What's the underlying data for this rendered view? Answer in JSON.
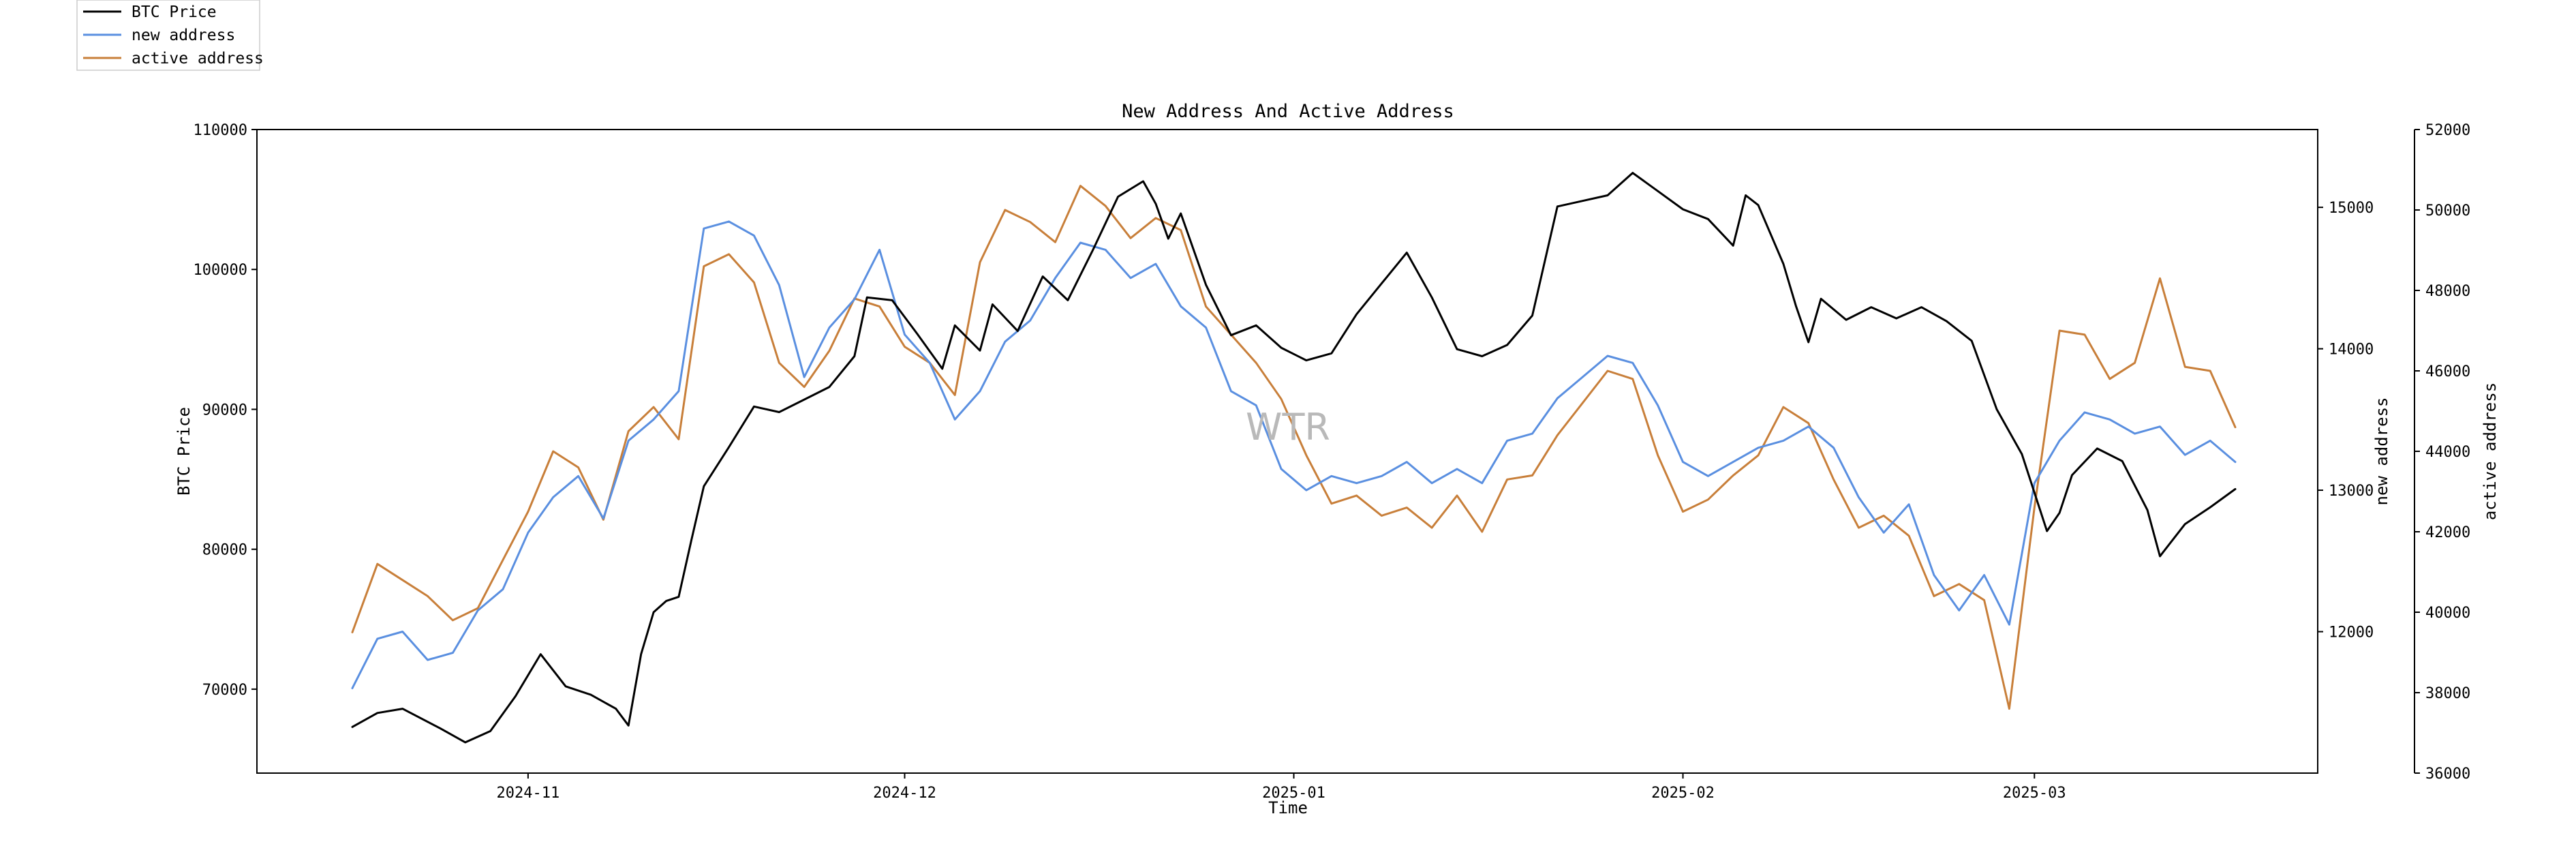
{
  "chart_data": {
    "type": "line",
    "title": "New Address And Active Address",
    "xlabel": "Time",
    "watermark": "WTR",
    "legend_placement": "top-left, outside plot",
    "x_range": [
      "2024-10-18",
      "2025-03-17"
    ],
    "x_ticks": [
      {
        "date": "2024-11-01",
        "label": "2024-11"
      },
      {
        "date": "2024-12-01",
        "label": "2024-12"
      },
      {
        "date": "2025-01-01",
        "label": "2025-01"
      },
      {
        "date": "2025-02-01",
        "label": "2025-02"
      },
      {
        "date": "2025-03-01",
        "label": "2025-03"
      }
    ],
    "axes": {
      "left": {
        "label": "BTC Price",
        "range": [
          64000,
          110000
        ],
        "ticks": [
          70000,
          80000,
          90000,
          100000,
          110000
        ]
      },
      "right1": {
        "label": "new address",
        "range": [
          11000,
          15550
        ],
        "ticks": [
          12000,
          13000,
          14000,
          15000
        ]
      },
      "right2": {
        "label": "active address",
        "range": [
          36000,
          52000
        ],
        "ticks": [
          36000,
          38000,
          40000,
          42000,
          44000,
          46000,
          48000,
          50000,
          52000
        ]
      }
    },
    "series": [
      {
        "name": "BTC Price",
        "axis": "left",
        "color": "#000000",
        "points": [
          [
            "2024-10-18",
            67300
          ],
          [
            "2024-10-20",
            68300
          ],
          [
            "2024-10-22",
            68600
          ],
          [
            "2024-10-25",
            67200
          ],
          [
            "2024-10-27",
            66200
          ],
          [
            "2024-10-29",
            67000
          ],
          [
            "2024-10-31",
            69500
          ],
          [
            "2024-11-02",
            72500
          ],
          [
            "2024-11-04",
            70200
          ],
          [
            "2024-11-06",
            69600
          ],
          [
            "2024-11-08",
            68600
          ],
          [
            "2024-11-09",
            67400
          ],
          [
            "2024-11-10",
            72500
          ],
          [
            "2024-11-11",
            75500
          ],
          [
            "2024-11-12",
            76300
          ],
          [
            "2024-11-13",
            76600
          ],
          [
            "2024-11-14",
            80600
          ],
          [
            "2024-11-15",
            84500
          ],
          [
            "2024-11-17",
            87300
          ],
          [
            "2024-11-19",
            90200
          ],
          [
            "2024-11-21",
            89800
          ],
          [
            "2024-11-23",
            90700
          ],
          [
            "2024-11-25",
            91600
          ],
          [
            "2024-11-27",
            93800
          ],
          [
            "2024-11-28",
            98000
          ],
          [
            "2024-11-30",
            97800
          ],
          [
            "2024-12-02",
            95400
          ],
          [
            "2024-12-04",
            92900
          ],
          [
            "2024-12-05",
            96000
          ],
          [
            "2024-12-07",
            94200
          ],
          [
            "2024-12-08",
            97500
          ],
          [
            "2024-12-10",
            95600
          ],
          [
            "2024-12-12",
            99500
          ],
          [
            "2024-12-14",
            97800
          ],
          [
            "2024-12-16",
            101400
          ],
          [
            "2024-12-18",
            105200
          ],
          [
            "2024-12-20",
            106300
          ],
          [
            "2024-12-21",
            104700
          ],
          [
            "2024-12-22",
            102200
          ],
          [
            "2024-12-23",
            104000
          ],
          [
            "2024-12-25",
            98900
          ],
          [
            "2024-12-27",
            95300
          ],
          [
            "2024-12-29",
            96000
          ],
          [
            "2024-12-31",
            94400
          ],
          [
            "2025-01-02",
            93500
          ],
          [
            "2025-01-04",
            94000
          ],
          [
            "2025-01-06",
            96800
          ],
          [
            "2025-01-08",
            99000
          ],
          [
            "2025-01-10",
            101200
          ],
          [
            "2025-01-12",
            98000
          ],
          [
            "2025-01-14",
            94300
          ],
          [
            "2025-01-16",
            93800
          ],
          [
            "2025-01-18",
            94600
          ],
          [
            "2025-01-20",
            96700
          ],
          [
            "2025-01-22",
            104500
          ],
          [
            "2025-01-24",
            104900
          ],
          [
            "2025-01-26",
            105300
          ],
          [
            "2025-01-28",
            106900
          ],
          [
            "2025-01-30",
            105600
          ],
          [
            "2025-02-01",
            104300
          ],
          [
            "2025-02-03",
            103600
          ],
          [
            "2025-02-05",
            101700
          ],
          [
            "2025-02-06",
            105300
          ],
          [
            "2025-02-07",
            104600
          ],
          [
            "2025-02-09",
            100400
          ],
          [
            "2025-02-10",
            97400
          ],
          [
            "2025-02-11",
            94800
          ],
          [
            "2025-02-12",
            97900
          ],
          [
            "2025-02-14",
            96400
          ],
          [
            "2025-02-16",
            97300
          ],
          [
            "2025-02-18",
            96500
          ],
          [
            "2025-02-20",
            97300
          ],
          [
            "2025-02-22",
            96300
          ],
          [
            "2025-02-24",
            94900
          ],
          [
            "2025-02-26",
            90000
          ],
          [
            "2025-02-28",
            86800
          ],
          [
            "2025-03-02",
            81300
          ],
          [
            "2025-03-03",
            82600
          ],
          [
            "2025-03-04",
            85300
          ],
          [
            "2025-03-06",
            87200
          ],
          [
            "2025-03-08",
            86300
          ],
          [
            "2025-03-10",
            82800
          ],
          [
            "2025-03-11",
            79500
          ],
          [
            "2025-03-13",
            81800
          ],
          [
            "2025-03-15",
            83000
          ],
          [
            "2025-03-17",
            84300
          ]
        ]
      },
      {
        "name": "new address",
        "axis": "right1",
        "color": "#5a8fe0",
        "points": [
          [
            "2024-10-18",
            11600
          ],
          [
            "2024-10-20",
            11950
          ],
          [
            "2024-10-22",
            12000
          ],
          [
            "2024-10-24",
            11800
          ],
          [
            "2024-10-26",
            11850
          ],
          [
            "2024-10-28",
            12150
          ],
          [
            "2024-10-30",
            12300
          ],
          [
            "2024-11-01",
            12700
          ],
          [
            "2024-11-03",
            12950
          ],
          [
            "2024-11-05",
            13100
          ],
          [
            "2024-11-07",
            12800
          ],
          [
            "2024-11-09",
            13350
          ],
          [
            "2024-11-11",
            13500
          ],
          [
            "2024-11-13",
            13700
          ],
          [
            "2024-11-15",
            14850
          ],
          [
            "2024-11-17",
            14900
          ],
          [
            "2024-11-19",
            14800
          ],
          [
            "2024-11-21",
            14450
          ],
          [
            "2024-11-23",
            13800
          ],
          [
            "2024-11-25",
            14150
          ],
          [
            "2024-11-27",
            14350
          ],
          [
            "2024-11-29",
            14700
          ],
          [
            "2024-12-01",
            14100
          ],
          [
            "2024-12-03",
            13900
          ],
          [
            "2024-12-05",
            13500
          ],
          [
            "2024-12-07",
            13700
          ],
          [
            "2024-12-09",
            14050
          ],
          [
            "2024-12-11",
            14200
          ],
          [
            "2024-12-13",
            14500
          ],
          [
            "2024-12-15",
            14750
          ],
          [
            "2024-12-17",
            14700
          ],
          [
            "2024-12-19",
            14500
          ],
          [
            "2024-12-21",
            14600
          ],
          [
            "2024-12-23",
            14300
          ],
          [
            "2024-12-25",
            14150
          ],
          [
            "2024-12-27",
            13700
          ],
          [
            "2024-12-29",
            13600
          ],
          [
            "2024-12-31",
            13150
          ],
          [
            "2025-01-02",
            13000
          ],
          [
            "2025-01-04",
            13100
          ],
          [
            "2025-01-06",
            13050
          ],
          [
            "2025-01-08",
            13100
          ],
          [
            "2025-01-10",
            13200
          ],
          [
            "2025-01-12",
            13050
          ],
          [
            "2025-01-14",
            13150
          ],
          [
            "2025-01-16",
            13050
          ],
          [
            "2025-01-18",
            13350
          ],
          [
            "2025-01-20",
            13400
          ],
          [
            "2025-01-22",
            13650
          ],
          [
            "2025-01-24",
            13800
          ],
          [
            "2025-01-26",
            13950
          ],
          [
            "2025-01-28",
            13900
          ],
          [
            "2025-01-30",
            13600
          ],
          [
            "2025-02-01",
            13200
          ],
          [
            "2025-02-03",
            13100
          ],
          [
            "2025-02-05",
            13200
          ],
          [
            "2025-02-07",
            13300
          ],
          [
            "2025-02-09",
            13350
          ],
          [
            "2025-02-11",
            13450
          ],
          [
            "2025-02-13",
            13300
          ],
          [
            "2025-02-15",
            12950
          ],
          [
            "2025-02-17",
            12700
          ],
          [
            "2025-02-19",
            12900
          ],
          [
            "2025-02-21",
            12400
          ],
          [
            "2025-02-23",
            12150
          ],
          [
            "2025-02-25",
            12400
          ],
          [
            "2025-02-27",
            12050
          ],
          [
            "2025-03-01",
            13050
          ],
          [
            "2025-03-03",
            13350
          ],
          [
            "2025-03-05",
            13550
          ],
          [
            "2025-03-07",
            13500
          ],
          [
            "2025-03-09",
            13400
          ],
          [
            "2025-03-11",
            13450
          ],
          [
            "2025-03-13",
            13250
          ],
          [
            "2025-03-15",
            13350
          ],
          [
            "2025-03-17",
            13200
          ]
        ]
      },
      {
        "name": "active address",
        "axis": "right2",
        "color": "#c87f3a",
        "points": [
          [
            "2024-10-18",
            39500
          ],
          [
            "2024-10-20",
            41200
          ],
          [
            "2024-10-22",
            40800
          ],
          [
            "2024-10-24",
            40400
          ],
          [
            "2024-10-26",
            39800
          ],
          [
            "2024-10-28",
            40100
          ],
          [
            "2024-10-30",
            41300
          ],
          [
            "2024-11-01",
            42500
          ],
          [
            "2024-11-03",
            44000
          ],
          [
            "2024-11-05",
            43600
          ],
          [
            "2024-11-07",
            42300
          ],
          [
            "2024-11-09",
            44500
          ],
          [
            "2024-11-11",
            45100
          ],
          [
            "2024-11-13",
            44300
          ],
          [
            "2024-11-15",
            48600
          ],
          [
            "2024-11-17",
            48900
          ],
          [
            "2024-11-19",
            48200
          ],
          [
            "2024-11-21",
            46200
          ],
          [
            "2024-11-23",
            45600
          ],
          [
            "2024-11-25",
            46500
          ],
          [
            "2024-11-27",
            47800
          ],
          [
            "2024-11-29",
            47600
          ],
          [
            "2024-12-01",
            46600
          ],
          [
            "2024-12-03",
            46200
          ],
          [
            "2024-12-05",
            45400
          ],
          [
            "2024-12-07",
            48700
          ],
          [
            "2024-12-09",
            50000
          ],
          [
            "2024-12-11",
            49700
          ],
          [
            "2024-12-13",
            49200
          ],
          [
            "2024-12-15",
            50600
          ],
          [
            "2024-12-17",
            50100
          ],
          [
            "2024-12-19",
            49300
          ],
          [
            "2024-12-21",
            49800
          ],
          [
            "2024-12-23",
            49500
          ],
          [
            "2024-12-25",
            47600
          ],
          [
            "2024-12-27",
            46900
          ],
          [
            "2024-12-29",
            46200
          ],
          [
            "2024-12-31",
            45300
          ],
          [
            "2025-01-02",
            43900
          ],
          [
            "2025-01-04",
            42700
          ],
          [
            "2025-01-06",
            42900
          ],
          [
            "2025-01-08",
            42400
          ],
          [
            "2025-01-10",
            42600
          ],
          [
            "2025-01-12",
            42100
          ],
          [
            "2025-01-14",
            42900
          ],
          [
            "2025-01-16",
            42000
          ],
          [
            "2025-01-18",
            43300
          ],
          [
            "2025-01-20",
            43400
          ],
          [
            "2025-01-22",
            44400
          ],
          [
            "2025-01-24",
            45200
          ],
          [
            "2025-01-26",
            46000
          ],
          [
            "2025-01-28",
            45800
          ],
          [
            "2025-01-30",
            43900
          ],
          [
            "2025-02-01",
            42500
          ],
          [
            "2025-02-03",
            42800
          ],
          [
            "2025-02-05",
            43400
          ],
          [
            "2025-02-07",
            43900
          ],
          [
            "2025-02-09",
            45100
          ],
          [
            "2025-02-11",
            44700
          ],
          [
            "2025-02-13",
            43300
          ],
          [
            "2025-02-15",
            42100
          ],
          [
            "2025-02-17",
            42400
          ],
          [
            "2025-02-19",
            41900
          ],
          [
            "2025-02-21",
            40400
          ],
          [
            "2025-02-23",
            40700
          ],
          [
            "2025-02-25",
            40300
          ],
          [
            "2025-02-27",
            37600
          ],
          [
            "2025-03-01",
            42600
          ],
          [
            "2025-03-03",
            47000
          ],
          [
            "2025-03-05",
            46900
          ],
          [
            "2025-03-07",
            45800
          ],
          [
            "2025-03-09",
            46200
          ],
          [
            "2025-03-11",
            48300
          ],
          [
            "2025-03-13",
            46100
          ],
          [
            "2025-03-15",
            46000
          ],
          [
            "2025-03-17",
            44600
          ]
        ]
      }
    ]
  }
}
